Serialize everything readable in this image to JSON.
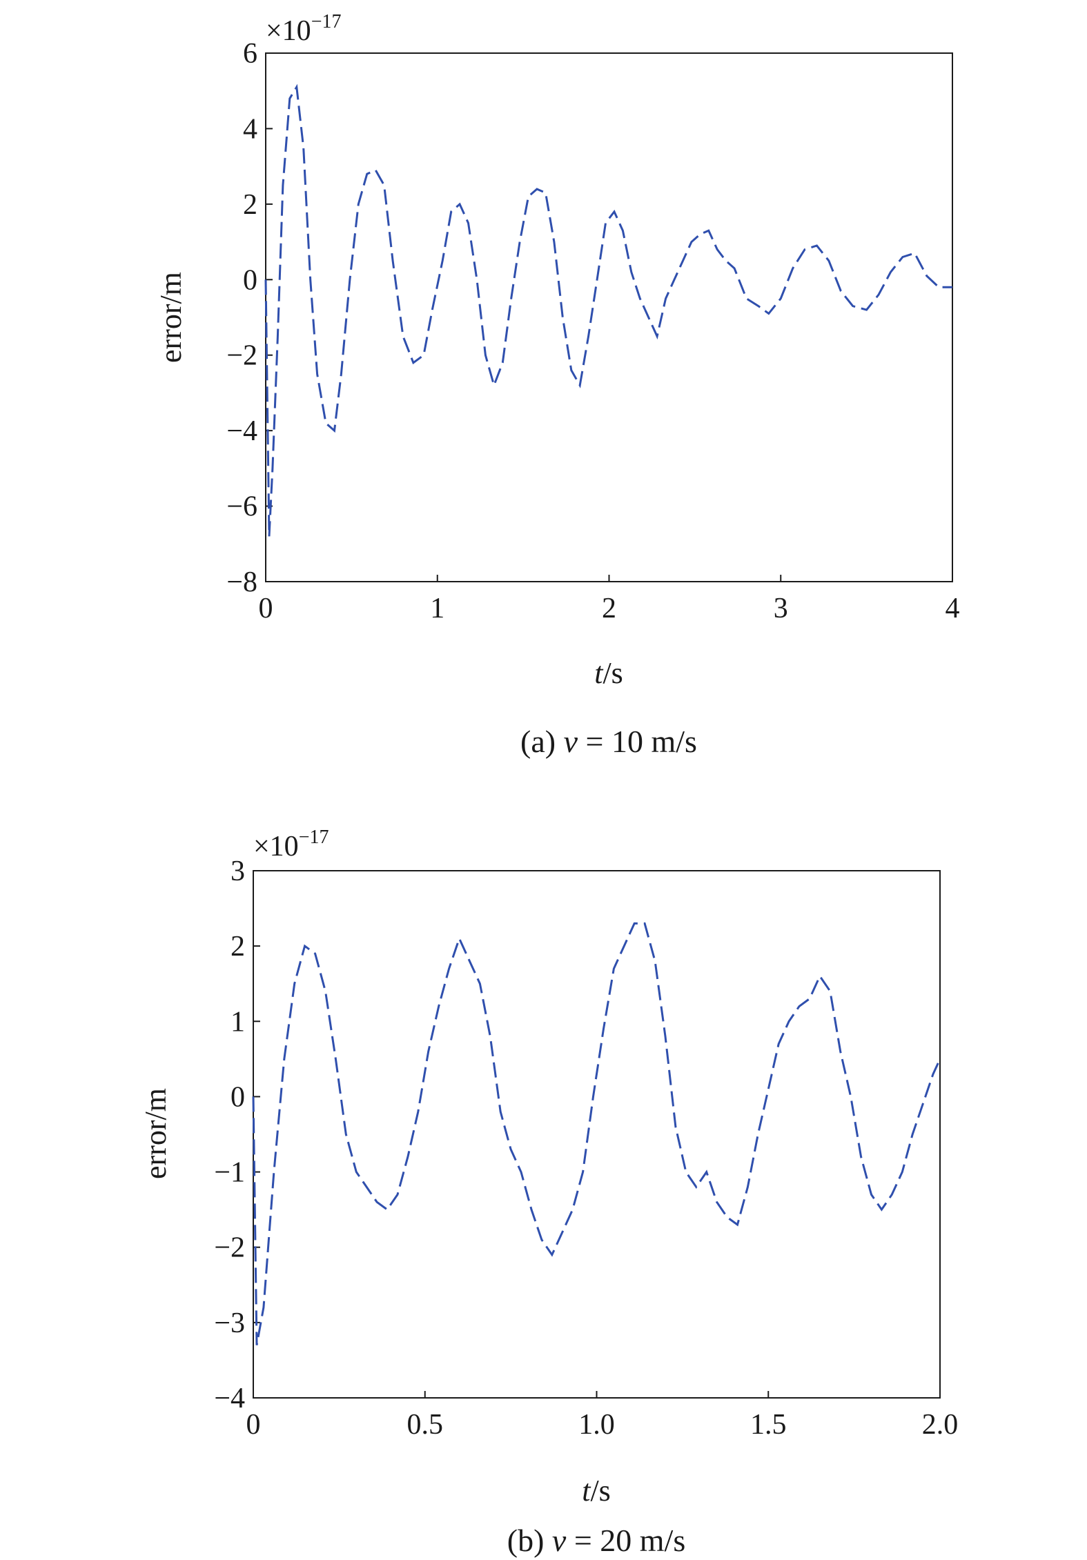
{
  "chart_data": [
    {
      "type": "line",
      "caption": {
        "prefix": "(a) ",
        "var": "v",
        "suffix": " = 10 m/s"
      },
      "scale_label": {
        "base": "×10",
        "exp": "−17"
      },
      "ylabel": "error/m",
      "xlabel": {
        "var": "t",
        "unit": "/s"
      },
      "xlim": [
        0,
        4
      ],
      "ylim": [
        -8,
        6
      ],
      "xticks": [
        0,
        1,
        2,
        3,
        4
      ],
      "xtick_labels": [
        "0",
        "1",
        "2",
        "3",
        "4"
      ],
      "yticks": [
        -8,
        -6,
        -4,
        -2,
        0,
        2,
        4,
        6
      ],
      "ytick_labels": [
        "−8",
        "−6",
        "−4",
        "−2",
        "0",
        "2",
        "4",
        "6"
      ],
      "line_style": "dashed",
      "grid": false,
      "series": [
        {
          "x": [
            0,
            0.02,
            0.04,
            0.07,
            0.1,
            0.14,
            0.18,
            0.22,
            0.26,
            0.3,
            0.35,
            0.4,
            0.44,
            0.49,
            0.54,
            0.59,
            0.64,
            0.69,
            0.74,
            0.8,
            0.86,
            0.92,
            0.97,
            1.03,
            1.08,
            1.13,
            1.18,
            1.23,
            1.28,
            1.33,
            1.38,
            1.43,
            1.48,
            1.53,
            1.58,
            1.63,
            1.68,
            1.73,
            1.78,
            1.83,
            1.88,
            1.93,
            1.98,
            2.03,
            2.08,
            2.13,
            2.18,
            2.23,
            2.28,
            2.33,
            2.38,
            2.43,
            2.48,
            2.53,
            2.58,
            2.63,
            2.68,
            2.73,
            2.8,
            2.87,
            2.93,
            3.0,
            3.07,
            3.14,
            3.21,
            3.28,
            3.35,
            3.42,
            3.5,
            3.57,
            3.64,
            3.71,
            3.78,
            3.85,
            3.92,
            4.0
          ],
          "y": [
            0,
            -6.8,
            -5,
            -1.5,
            2.5,
            4.8,
            5.1,
            3.5,
            0,
            -2.5,
            -3.8,
            -4.0,
            -2.5,
            0,
            2.0,
            2.8,
            2.9,
            2.5,
            0.5,
            -1.5,
            -2.2,
            -2.0,
            -0.8,
            0.5,
            1.8,
            2.0,
            1.5,
            0,
            -2.0,
            -2.8,
            -2.2,
            -0.5,
            1.0,
            2.2,
            2.4,
            2.3,
            1.0,
            -1.0,
            -2.4,
            -2.8,
            -1.5,
            0,
            1.5,
            1.8,
            1.3,
            0.2,
            -0.5,
            -1.0,
            -1.5,
            -0.5,
            0,
            0.5,
            1.0,
            1.2,
            1.3,
            0.8,
            0.5,
            0.3,
            -0.5,
            -0.7,
            -0.9,
            -0.5,
            0.3,
            0.8,
            0.9,
            0.5,
            -0.3,
            -0.7,
            -0.8,
            -0.4,
            0.2,
            0.6,
            0.7,
            0.1,
            -0.2,
            -0.2
          ]
        }
      ]
    },
    {
      "type": "line",
      "caption": {
        "prefix": "(b) ",
        "var": "v",
        "suffix": " = 20 m/s"
      },
      "scale_label": {
        "base": "×10",
        "exp": "−17"
      },
      "ylabel": "error/m",
      "xlabel": {
        "var": "t",
        "unit": "/s"
      },
      "xlim": [
        0,
        2
      ],
      "ylim": [
        -4,
        3
      ],
      "xticks": [
        0,
        0.5,
        1.0,
        1.5,
        2.0
      ],
      "xtick_labels": [
        "0",
        "0.5",
        "1.0",
        "1.5",
        "2.0"
      ],
      "yticks": [
        -4,
        -3,
        -2,
        -1,
        0,
        1,
        2,
        3
      ],
      "ytick_labels": [
        "−4",
        "−3",
        "−2",
        "−1",
        "0",
        "1",
        "2",
        "3"
      ],
      "line_style": "dashed",
      "grid": false,
      "series": [
        {
          "x": [
            0,
            0.01,
            0.03,
            0.06,
            0.09,
            0.12,
            0.15,
            0.18,
            0.21,
            0.24,
            0.27,
            0.3,
            0.33,
            0.36,
            0.39,
            0.42,
            0.45,
            0.48,
            0.51,
            0.54,
            0.57,
            0.6,
            0.63,
            0.66,
            0.69,
            0.72,
            0.75,
            0.78,
            0.81,
            0.84,
            0.87,
            0.9,
            0.93,
            0.96,
            0.99,
            1.02,
            1.05,
            1.08,
            1.11,
            1.14,
            1.17,
            1.2,
            1.23,
            1.26,
            1.29,
            1.32,
            1.35,
            1.38,
            1.41,
            1.44,
            1.47,
            1.5,
            1.53,
            1.56,
            1.59,
            1.62,
            1.65,
            1.68,
            1.71,
            1.74,
            1.77,
            1.8,
            1.83,
            1.86,
            1.89,
            1.92,
            1.95,
            1.98,
            2.0
          ],
          "y": [
            0,
            -3.3,
            -2.8,
            -1.0,
            0.5,
            1.5,
            2.0,
            1.9,
            1.4,
            0.5,
            -0.5,
            -1.0,
            -1.2,
            -1.4,
            -1.5,
            -1.3,
            -0.8,
            -0.2,
            0.6,
            1.2,
            1.7,
            2.1,
            1.8,
            1.5,
            0.8,
            -0.2,
            -0.7,
            -1.0,
            -1.5,
            -1.9,
            -2.1,
            -1.8,
            -1.5,
            -1.0,
            0.0,
            0.9,
            1.7,
            2.0,
            2.3,
            2.3,
            1.8,
            0.8,
            -0.4,
            -1.0,
            -1.2,
            -1.0,
            -1.4,
            -1.6,
            -1.7,
            -1.2,
            -0.5,
            0.1,
            0.7,
            1.0,
            1.2,
            1.3,
            1.6,
            1.4,
            0.6,
            0.0,
            -0.8,
            -1.3,
            -1.5,
            -1.3,
            -1.0,
            -0.5,
            -0.1,
            0.3,
            0.5
          ]
        }
      ]
    }
  ],
  "colors": {
    "line": "#2f4fad",
    "axis": "#1a1a1a",
    "background": "#ffffff"
  }
}
